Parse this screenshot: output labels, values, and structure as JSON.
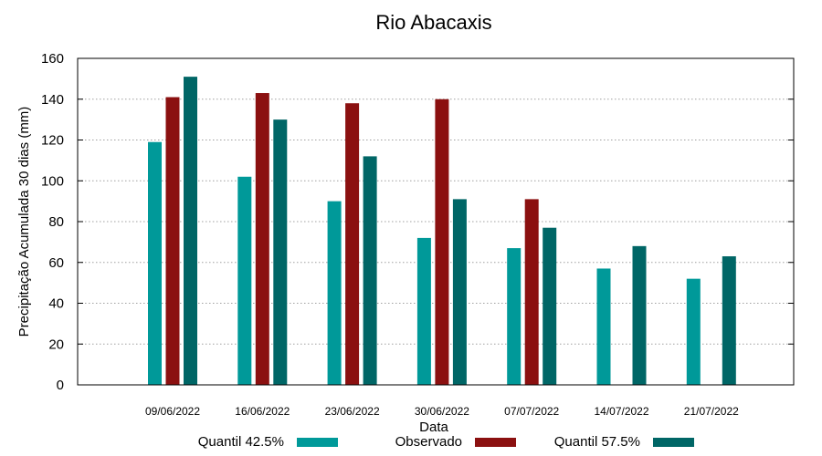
{
  "chart_data": {
    "type": "bar",
    "title": "Rio Abacaxis",
    "xlabel": "Data",
    "ylabel": "Precipitação Acumulada 30 dias (mm)",
    "ylim": [
      0,
      160
    ],
    "yticks": [
      0,
      20,
      40,
      60,
      80,
      100,
      120,
      140,
      160
    ],
    "grid": true,
    "legend_position": "bottom",
    "categories": [
      "09/06/2022",
      "16/06/2022",
      "23/06/2022",
      "30/06/2022",
      "07/07/2022",
      "14/07/2022",
      "21/07/2022"
    ],
    "series": [
      {
        "name": "Quantil 42.5%",
        "color": "#009999",
        "values": [
          119,
          102,
          90,
          72,
          67,
          57,
          52
        ]
      },
      {
        "name": "Observado",
        "color": "#8b1010",
        "values": [
          141,
          143,
          138,
          140,
          91,
          null,
          null
        ]
      },
      {
        "name": "Quantil 57.5%",
        "color": "#006666",
        "values": [
          151,
          130,
          112,
          91,
          77,
          68,
          63
        ]
      }
    ]
  }
}
